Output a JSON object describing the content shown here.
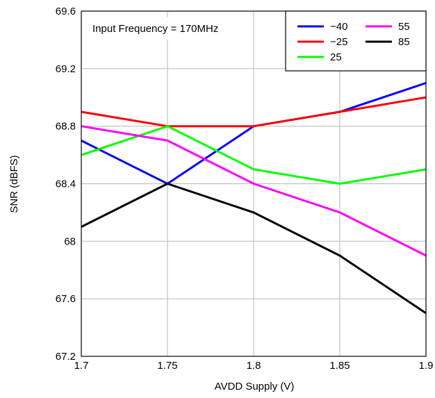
{
  "chart_data": {
    "type": "line",
    "title": "",
    "xlabel": "AVDD Supply (V)",
    "ylabel": "SNR (dBFS)",
    "annotation": "Input Frequency = 170MHz",
    "xlim": [
      1.7,
      1.9
    ],
    "ylim": [
      67.2,
      69.6
    ],
    "x_ticks": [
      1.7,
      1.75,
      1.8,
      1.85,
      1.9
    ],
    "x_tick_labels": [
      "1.7",
      "1.75",
      "1.8",
      "1.85",
      "1.9"
    ],
    "y_ticks": [
      67.2,
      67.6,
      68.0,
      68.4,
      68.8,
      69.2,
      69.6
    ],
    "y_tick_labels": [
      "67.2",
      "67.6",
      "68",
      "68.4",
      "68.8",
      "69.2",
      "69.6"
    ],
    "grid": true,
    "legend_position": "top-right",
    "x": [
      1.7,
      1.75,
      1.8,
      1.85,
      1.9
    ],
    "series": [
      {
        "name": "−40",
        "color": "#0000ff",
        "values": [
          68.7,
          68.4,
          68.8,
          68.9,
          69.1
        ]
      },
      {
        "name": "−25",
        "color": "#ff0000",
        "values": [
          68.9,
          68.8,
          68.8,
          68.9,
          69.0
        ]
      },
      {
        "name": "25",
        "color": "#00ff00",
        "values": [
          68.6,
          68.8,
          68.5,
          68.4,
          68.5
        ]
      },
      {
        "name": "55",
        "color": "#ff00ff",
        "values": [
          68.8,
          68.7,
          68.4,
          68.2,
          67.9
        ]
      },
      {
        "name": "85",
        "color": "#000000",
        "values": [
          68.1,
          68.4,
          68.2,
          67.9,
          67.5
        ]
      }
    ]
  }
}
